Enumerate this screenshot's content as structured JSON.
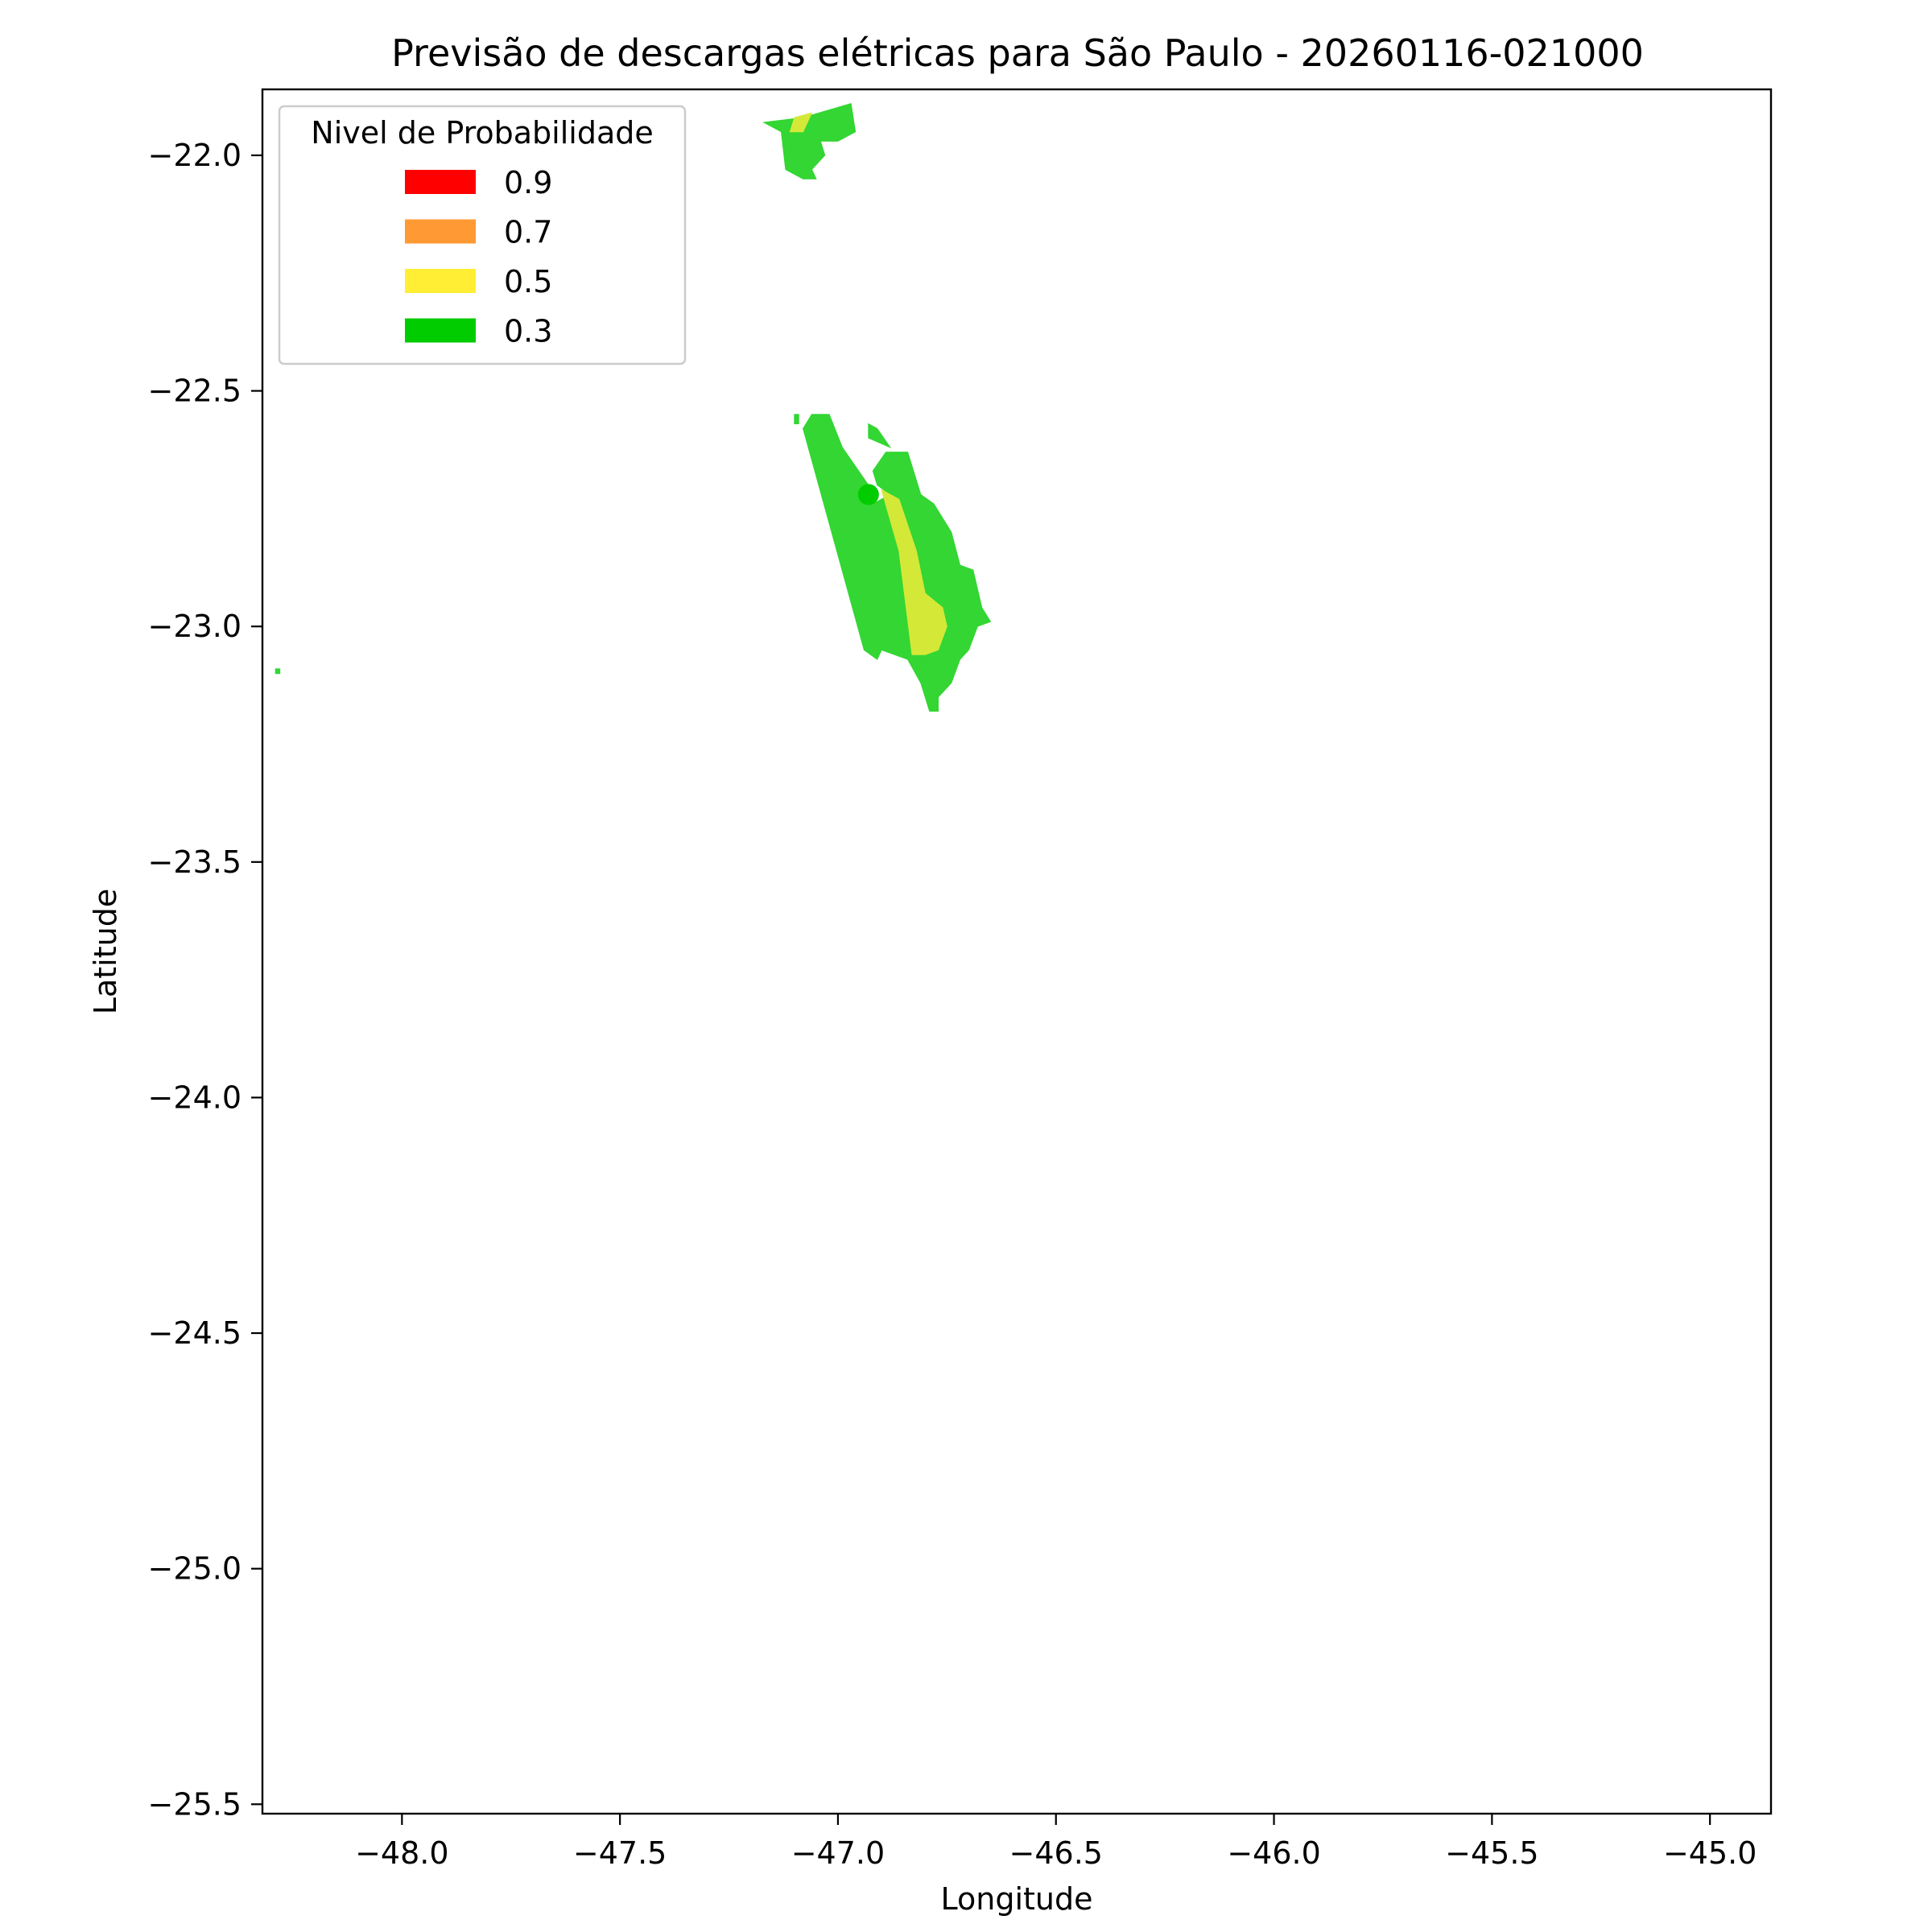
{
  "chart_data": {
    "type": "filled-contour-map",
    "title": "Previsão de descargas elétricas para São Paulo - 20260116-021000",
    "xlabel": "Longitude",
    "ylabel": "Latitude",
    "xlim": [
      -48.32,
      -44.86
    ],
    "ylim": [
      -25.52,
      -21.86
    ],
    "xticks": [
      -48.0,
      -47.5,
      -47.0,
      -46.5,
      -46.0,
      -45.5,
      -45.0
    ],
    "yticks": [
      -22.0,
      -22.5,
      -23.0,
      -23.5,
      -24.0,
      -24.5,
      -25.0,
      -25.5
    ],
    "xtick_labels": [
      "−48.0",
      "−47.5",
      "−47.0",
      "−46.5",
      "−46.0",
      "−45.5",
      "−45.0"
    ],
    "ytick_labels": [
      "−22.0",
      "−22.5",
      "−23.0",
      "−23.5",
      "−24.0",
      "−24.5",
      "−25.0",
      "−25.5"
    ],
    "grid": false,
    "legend": {
      "title": "Nivel de Probabilidade",
      "placement": "upper-left",
      "entries": [
        {
          "label": "0.9",
          "color": "#ff0000"
        },
        {
          "label": "0.7",
          "color": "#ff9933"
        },
        {
          "label": "0.5",
          "color": "#ffee33"
        },
        {
          "label": "0.3",
          "color": "#00cc00"
        }
      ]
    },
    "regions": [
      {
        "level": "0.3",
        "color": "#33d633",
        "polygon": [
          [
            -47.17,
            -21.93
          ],
          [
            -47.08,
            -21.92
          ],
          [
            -46.97,
            -21.89
          ],
          [
            -46.96,
            -21.95
          ],
          [
            -47.0,
            -21.97
          ],
          [
            -47.04,
            -21.97
          ],
          [
            -47.03,
            -22.0
          ],
          [
            -47.06,
            -22.03
          ],
          [
            -47.05,
            -22.05
          ],
          [
            -47.08,
            -22.05
          ],
          [
            -47.12,
            -22.03
          ],
          [
            -47.13,
            -21.95
          ]
        ]
      },
      {
        "level": "0.5",
        "color": "#d4e838",
        "polygon": [
          [
            -47.1,
            -21.92
          ],
          [
            -47.06,
            -21.91
          ],
          [
            -47.08,
            -21.95
          ],
          [
            -47.11,
            -21.95
          ]
        ]
      },
      {
        "level": "0.3",
        "color": "#33d633",
        "polygon": [
          [
            -47.06,
            -22.55
          ],
          [
            -47.08,
            -22.58
          ],
          [
            -46.94,
            -23.05
          ],
          [
            -46.91,
            -23.07
          ],
          [
            -46.9,
            -23.05
          ],
          [
            -46.84,
            -23.07
          ],
          [
            -46.81,
            -23.12
          ],
          [
            -46.79,
            -23.18
          ],
          [
            -46.77,
            -23.18
          ],
          [
            -46.77,
            -23.15
          ],
          [
            -46.74,
            -23.12
          ],
          [
            -46.72,
            -23.07
          ],
          [
            -46.7,
            -23.05
          ],
          [
            -46.68,
            -23.0
          ],
          [
            -46.65,
            -22.99
          ],
          [
            -46.67,
            -22.96
          ],
          [
            -46.69,
            -22.88
          ],
          [
            -46.72,
            -22.87
          ],
          [
            -46.74,
            -22.8
          ],
          [
            -46.78,
            -22.74
          ],
          [
            -46.81,
            -22.72
          ],
          [
            -46.84,
            -22.63
          ],
          [
            -46.89,
            -22.63
          ],
          [
            -46.92,
            -22.67
          ],
          [
            -46.91,
            -22.7
          ],
          [
            -46.88,
            -22.72
          ],
          [
            -46.92,
            -22.74
          ],
          [
            -46.93,
            -22.7
          ],
          [
            -46.96,
            -22.66
          ],
          [
            -46.99,
            -22.62
          ],
          [
            -47.02,
            -22.55
          ]
        ]
      },
      {
        "level": "0.3",
        "color": "#33d633",
        "polygon": [
          [
            -47.1,
            -22.55
          ],
          [
            -47.09,
            -22.55
          ],
          [
            -47.09,
            -22.57
          ],
          [
            -47.1,
            -22.57
          ]
        ]
      },
      {
        "level": "0.3",
        "color": "#33d633",
        "polygon": [
          [
            -46.93,
            -22.57
          ],
          [
            -46.91,
            -22.58
          ],
          [
            -46.88,
            -22.62
          ],
          [
            -46.93,
            -22.6
          ]
        ]
      },
      {
        "level": "0.5",
        "color": "#d4e838",
        "polygon": [
          [
            -46.9,
            -22.71
          ],
          [
            -46.86,
            -22.73
          ],
          [
            -46.82,
            -22.84
          ],
          [
            -46.8,
            -22.93
          ],
          [
            -46.76,
            -22.96
          ],
          [
            -46.75,
            -23.0
          ],
          [
            -46.77,
            -23.05
          ],
          [
            -46.8,
            -23.06
          ],
          [
            -46.83,
            -23.06
          ],
          [
            -46.86,
            -22.84
          ]
        ]
      },
      {
        "level": "0.3",
        "color": "#33d633",
        "polygon": [
          [
            -48.29,
            -23.09
          ],
          [
            -48.28,
            -23.09
          ],
          [
            -48.28,
            -23.1
          ],
          [
            -48.29,
            -23.1
          ]
        ]
      }
    ],
    "points": [
      {
        "lon": -46.93,
        "lat": -22.72,
        "color": "#00cc00"
      }
    ]
  }
}
